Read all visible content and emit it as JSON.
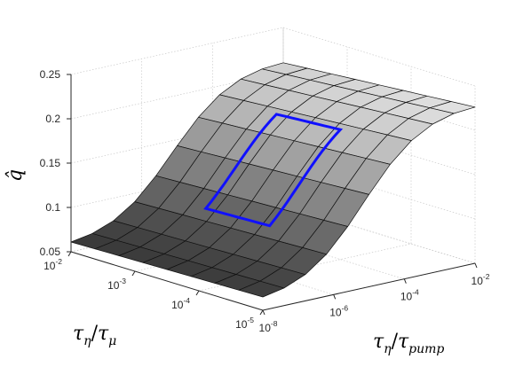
{
  "chart_data": {
    "type": "surface",
    "title": "",
    "zlabel": "q̂",
    "xlabel": {
      "base": "τ",
      "sub1": "η",
      "slash": "/",
      "base2": "τ",
      "sub2": "pump"
    },
    "ylabel": {
      "base": "τ",
      "sub1": "η",
      "slash": "/",
      "base2": "τ",
      "sub2": "μ"
    },
    "x": {
      "scale": "log",
      "range": [
        1e-08,
        0.01
      ],
      "ticks": [
        {
          "base": "10",
          "exp": "-8"
        },
        {
          "base": "10",
          "exp": "-6"
        },
        {
          "base": "10",
          "exp": "-4"
        },
        {
          "base": "10",
          "exp": "-2"
        }
      ]
    },
    "y": {
      "scale": "log",
      "range": [
        1e-05,
        0.01
      ],
      "ticks": [
        {
          "base": "10",
          "exp": "-5"
        },
        {
          "base": "10",
          "exp": "-4"
        },
        {
          "base": "10",
          "exp": "-3"
        },
        {
          "base": "10",
          "exp": "-2"
        }
      ]
    },
    "z": {
      "range": [
        0.05,
        0.25
      ],
      "ticks": [
        "0.05",
        "0.1",
        "0.15",
        "0.2",
        "0.25"
      ]
    },
    "grid": true,
    "colormap": "gray",
    "surface_mesh": {
      "x_points": 11,
      "y_points": 9
    },
    "highlight_box": {
      "color": "#1010ff",
      "x_range": [
        1e-06,
        0.0001
      ],
      "y_range": [
        0.0001,
        0.001
      ]
    }
  }
}
